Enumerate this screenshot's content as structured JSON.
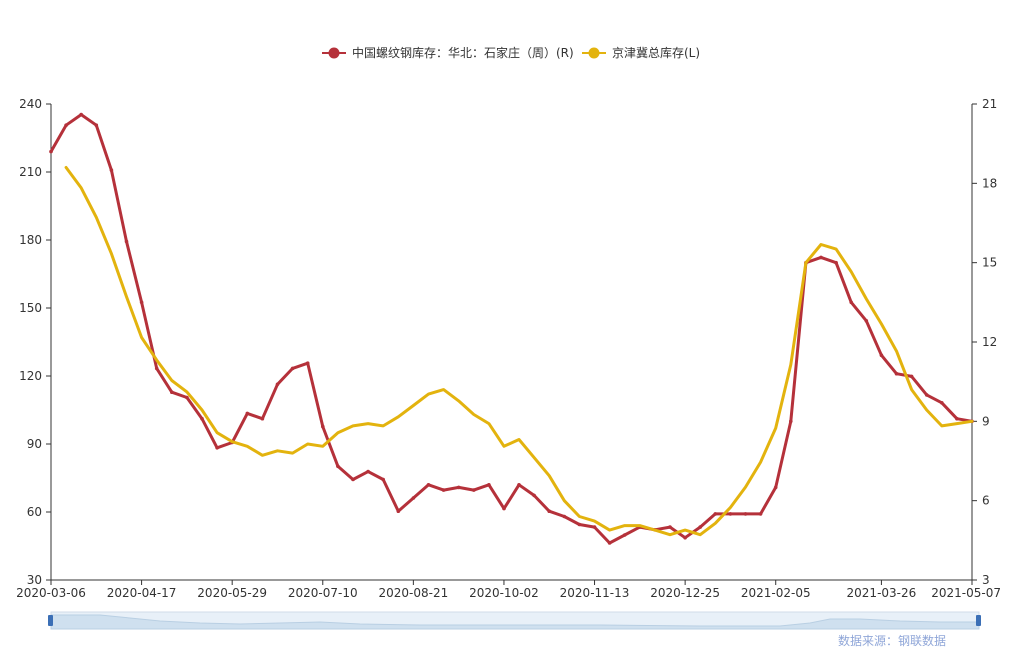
{
  "chart_data": {
    "type": "line",
    "legend": {
      "placement": "top-center",
      "items": [
        {
          "label": "中国螺纹钢库存：华北：石家庄（周）(R)",
          "color": "#b5313a"
        },
        {
          "label": "京津冀总库存(L)",
          "color": "#e3b30e"
        }
      ]
    },
    "x_axis": {
      "range": [
        "2020-03-06",
        "2021-05-07"
      ],
      "ticks": [
        "2020-03-06",
        "2020-04-17",
        "2020-05-29",
        "2020-07-10",
        "2020-08-21",
        "2020-10-02",
        "2020-11-13",
        "2020-12-25",
        "2021-02-05",
        "2021-03-26",
        "2021-05-07"
      ]
    },
    "y_left": {
      "range": [
        30,
        240
      ],
      "ticks": [
        "240",
        "210",
        "180",
        "150",
        "120",
        "90",
        "60",
        "30"
      ]
    },
    "y_right": {
      "range": [
        3,
        21
      ],
      "ticks": [
        "21",
        "18",
        "15",
        "12",
        "9",
        "6",
        "3"
      ]
    },
    "grid": false,
    "series": [
      {
        "name": "中国螺纹钢库存：华北：石家庄（周）(R)",
        "axis": "right",
        "color": "#b5313a",
        "x": [
          "2020-03-06",
          "2020-03-13",
          "2020-03-20",
          "2020-03-27",
          "2020-04-03",
          "2020-04-10",
          "2020-04-17",
          "2020-04-24",
          "2020-05-01",
          "2020-05-08",
          "2020-05-15",
          "2020-05-22",
          "2020-05-29",
          "2020-06-05",
          "2020-06-12",
          "2020-06-19",
          "2020-06-26",
          "2020-07-03",
          "2020-07-10",
          "2020-07-17",
          "2020-07-24",
          "2020-07-31",
          "2020-08-07",
          "2020-08-14",
          "2020-08-21",
          "2020-08-28",
          "2020-09-04",
          "2020-09-11",
          "2020-09-18",
          "2020-09-25",
          "2020-10-02",
          "2020-10-09",
          "2020-10-16",
          "2020-10-23",
          "2020-10-30",
          "2020-11-06",
          "2020-11-13",
          "2020-11-20",
          "2020-11-27",
          "2020-12-04",
          "2020-12-11",
          "2020-12-18",
          "2020-12-25",
          "2021-01-01",
          "2021-01-08",
          "2021-01-15",
          "2021-01-22",
          "2021-01-29",
          "2021-02-05",
          "2021-02-12",
          "2021-02-19",
          "2021-02-26",
          "2021-03-05",
          "2021-03-12",
          "2021-03-19",
          "2021-03-26",
          "2021-04-02",
          "2021-04-09",
          "2021-04-16",
          "2021-04-23",
          "2021-04-30",
          "2021-05-07"
        ],
        "values": [
          19.2,
          20.2,
          20.6,
          20.2,
          18.5,
          15.8,
          13.5,
          11.0,
          10.1,
          9.9,
          9.1,
          8.0,
          8.2,
          9.3,
          9.1,
          10.4,
          11.0,
          11.2,
          8.8,
          7.3,
          6.8,
          7.1,
          6.8,
          5.6,
          6.1,
          6.6,
          6.4,
          6.5,
          6.4,
          6.6,
          5.7,
          6.6,
          6.2,
          5.6,
          5.4,
          5.1,
          5.0,
          4.4,
          4.7,
          5.0,
          4.9,
          5.0,
          4.6,
          5.0,
          5.5,
          5.5,
          5.5,
          5.5,
          6.5,
          9.0,
          15.0,
          15.2,
          15.0,
          13.5,
          12.8,
          11.5,
          10.8,
          10.7,
          10.0,
          9.7,
          9.1,
          9.0
        ]
      },
      {
        "name": "京津冀总库存(L)",
        "axis": "left",
        "color": "#e3b30e",
        "x": [
          "2020-03-13",
          "2020-03-20",
          "2020-03-27",
          "2020-04-03",
          "2020-04-10",
          "2020-04-17",
          "2020-04-24",
          "2020-05-01",
          "2020-05-08",
          "2020-05-15",
          "2020-05-22",
          "2020-05-29",
          "2020-06-05",
          "2020-06-12",
          "2020-06-19",
          "2020-06-26",
          "2020-07-03",
          "2020-07-10",
          "2020-07-17",
          "2020-07-24",
          "2020-07-31",
          "2020-08-07",
          "2020-08-14",
          "2020-08-21",
          "2020-08-28",
          "2020-09-04",
          "2020-09-11",
          "2020-09-18",
          "2020-09-25",
          "2020-10-02",
          "2020-10-09",
          "2020-10-16",
          "2020-10-23",
          "2020-10-30",
          "2020-11-06",
          "2020-11-13",
          "2020-11-20",
          "2020-11-27",
          "2020-12-04",
          "2020-12-11",
          "2020-12-18",
          "2020-12-25",
          "2021-01-01",
          "2021-01-08",
          "2021-01-15",
          "2021-01-22",
          "2021-01-29",
          "2021-02-05",
          "2021-02-12",
          "2021-02-19",
          "2021-02-26",
          "2021-03-05",
          "2021-03-12",
          "2021-03-19",
          "2021-03-26",
          "2021-04-02",
          "2021-04-09",
          "2021-04-16",
          "2021-04-23",
          "2021-04-30",
          "2021-05-07"
        ],
        "values": [
          212,
          203,
          190,
          174,
          155,
          137,
          127,
          118,
          113,
          105,
          95,
          91,
          89,
          85,
          87,
          86,
          90,
          89,
          95,
          98,
          99,
          98,
          102,
          107,
          112,
          114,
          109,
          103,
          99,
          89,
          92,
          84,
          76,
          65,
          58,
          56,
          52,
          54,
          54,
          52,
          50,
          52,
          50,
          55,
          62,
          71,
          82,
          97,
          125,
          170,
          178,
          176,
          166,
          154,
          143,
          131,
          114,
          105,
          98,
          99,
          100
        ]
      }
    ]
  },
  "source": "数据来源：钢联数据"
}
